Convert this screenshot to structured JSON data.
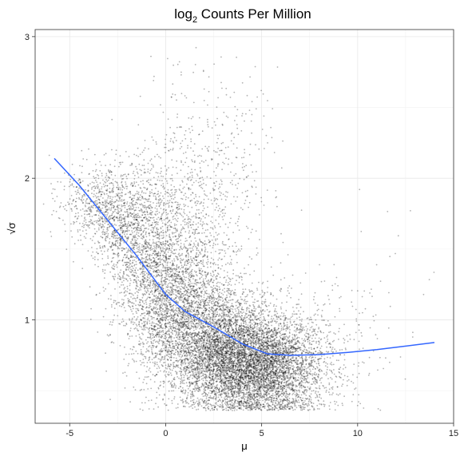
{
  "chart_data": {
    "type": "scatter",
    "title_main": "log",
    "title_sub": "2",
    "title_rest": " Counts Per Million",
    "xlabel": "μ",
    "ylabel": "√σ",
    "xlim": [
      -6.8,
      15
    ],
    "ylim": [
      0.27,
      3.05
    ],
    "xticks": [
      -5,
      0,
      5,
      10,
      15
    ],
    "yticks": [
      1,
      2,
      3
    ],
    "grid": true,
    "point_color": "#000000",
    "trend_color": "#3366ff",
    "trend": {
      "x": [
        -5.8,
        -4.5,
        -3,
        -1.5,
        0,
        1,
        2.5,
        4,
        5.3,
        6.5,
        8,
        9.5,
        11,
        12.5,
        14
      ],
      "y": [
        2.14,
        1.95,
        1.7,
        1.45,
        1.18,
        1.06,
        0.95,
        0.83,
        0.76,
        0.75,
        0.755,
        0.77,
        0.79,
        0.815,
        0.84
      ]
    },
    "clusters": [
      {
        "cx": 4.6,
        "cy": 0.66,
        "sx": 1.6,
        "sy": 0.17,
        "n": 4200
      },
      {
        "cx": 2.8,
        "cy": 0.84,
        "sx": 1.6,
        "sy": 0.22,
        "n": 2800
      },
      {
        "cx": 0.6,
        "cy": 1.12,
        "sx": 1.4,
        "sy": 0.28,
        "n": 2000
      },
      {
        "cx": -0.8,
        "cy": 1.45,
        "sx": 1.1,
        "sy": 0.32,
        "n": 1300
      },
      {
        "cx": -2.5,
        "cy": 1.68,
        "sx": 0.8,
        "sy": 0.18,
        "n": 650
      },
      {
        "cx": -4.0,
        "cy": 1.82,
        "sx": 0.9,
        "sy": 0.14,
        "n": 350
      },
      {
        "cx": 1.5,
        "cy": 1.75,
        "sx": 1.6,
        "sy": 0.38,
        "n": 700
      },
      {
        "cx": 6.5,
        "cy": 0.72,
        "sx": 1.3,
        "sy": 0.2,
        "n": 700
      },
      {
        "cx": 8.5,
        "cy": 0.8,
        "sx": 1.5,
        "sy": 0.28,
        "n": 180
      },
      {
        "cx": 3.5,
        "cy": 2.2,
        "sx": 1.5,
        "sy": 0.3,
        "n": 120
      },
      {
        "cx": 11.5,
        "cy": 1.0,
        "sx": 1.5,
        "sy": 0.4,
        "n": 30
      }
    ]
  }
}
